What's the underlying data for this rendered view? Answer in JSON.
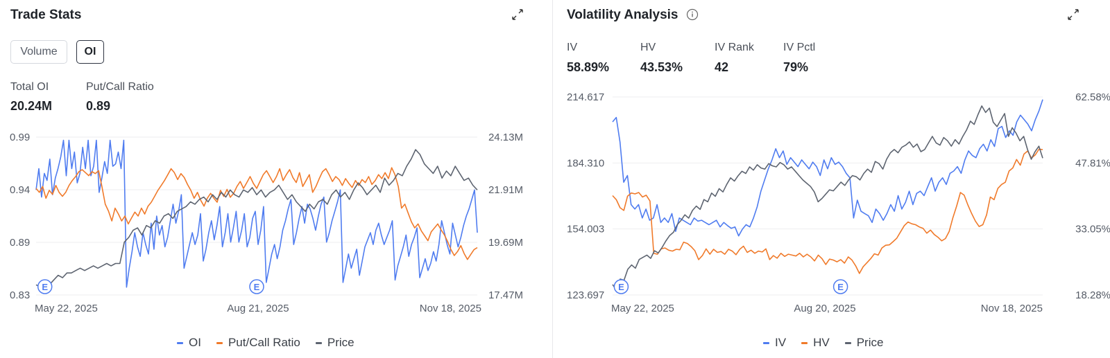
{
  "trade_stats": {
    "title": "Trade Stats",
    "toggles": [
      {
        "label": "Volume",
        "active": false
      },
      {
        "label": "OI",
        "active": true
      }
    ],
    "stats": [
      {
        "label": "Total OI",
        "value": "20.24M"
      },
      {
        "label": "Put/Call Ratio",
        "value": "0.89"
      }
    ],
    "legend": [
      "OI",
      "Put/Call Ratio",
      "Price"
    ]
  },
  "volatility": {
    "title": "Volatility Analysis",
    "stats": [
      {
        "label": "IV",
        "value": "58.89%"
      },
      {
        "label": "HV",
        "value": "43.53%"
      },
      {
        "label": "IV Rank",
        "value": "42"
      },
      {
        "label": "IV Pctl",
        "value": "79%"
      }
    ],
    "legend": [
      "IV",
      "HV",
      "Price"
    ]
  },
  "colors": {
    "blue": "#4f7cf0",
    "orange": "#f07a2a",
    "gray": "#5d6470",
    "grid": "#eeeeef"
  },
  "icons": {
    "expand": "expand-arrows-icon",
    "info": "info-circle-icon",
    "earnings": "earnings-marker-icon"
  },
  "chart_data": [
    {
      "type": "line",
      "title": "",
      "x_labels": [
        "May 22, 2025",
        "Aug 21, 2025",
        "Nov 18, 2025"
      ],
      "y_left_ticks": [
        "0.99",
        "0.94",
        "0.89",
        "0.83"
      ],
      "y_right_ticks": [
        "24.13M",
        "21.91M",
        "19.69M",
        "17.47M"
      ],
      "y_left_range": [
        0.83,
        0.99
      ],
      "y_right_range": [
        17.47,
        24.13
      ],
      "earnings_markers": [
        {
          "x": 0.02,
          "label": "E"
        },
        {
          "x": 0.5,
          "label": "E"
        }
      ],
      "series": [
        {
          "name": "OI",
          "color": "#4f7cf0",
          "axis": "right",
          "values": [
            21.9,
            22.8,
            21.6,
            22.6,
            22.3,
            23.2,
            21.7,
            22.4,
            22.8,
            23.3,
            24.0,
            22.5,
            24.0,
            22.8,
            23.5,
            22.2,
            22.6,
            23.7,
            22.8,
            24.0,
            22.5,
            22.9,
            24.0,
            21.8,
            22.4,
            23.1,
            22.6,
            24.0,
            22.9,
            23.0,
            23.5,
            22.8,
            24.0,
            17.8,
            18.6,
            19.3,
            20.1,
            19.5,
            19.1,
            20.1,
            19.6,
            19.2,
            20.5,
            19.4,
            20.8,
            20.0,
            20.4,
            19.5,
            19.9,
            20.6,
            21.3,
            20.5,
            21.0,
            21.7,
            18.6,
            19.1,
            19.6,
            20.1,
            19.6,
            20.0,
            20.9,
            18.9,
            19.4,
            20.1,
            20.6,
            19.8,
            20.4,
            21.2,
            19.5,
            20.1,
            20.9,
            19.7,
            20.3,
            21.0,
            19.7,
            20.2,
            20.9,
            19.5,
            19.9,
            20.7,
            21.0,
            19.6,
            20.2,
            21.2,
            18.0,
            18.6,
            19.2,
            19.6,
            19.0,
            19.5,
            20.2,
            20.6,
            21.1,
            21.5,
            19.6,
            20.1,
            20.7,
            21.2,
            20.5,
            21.3,
            21.1,
            20.7,
            20.2,
            20.8,
            21.3,
            21.6,
            19.7,
            20.1,
            20.6,
            21.0,
            21.4,
            21.9,
            18.0,
            18.6,
            19.2,
            18.6,
            19.0,
            19.4,
            18.3,
            18.9,
            19.5,
            19.8,
            20.1,
            19.6,
            20.2,
            20.5,
            20.0,
            19.6,
            19.9,
            20.2,
            20.6,
            18.1,
            18.7,
            19.1,
            19.5,
            20.0,
            19.1,
            19.6,
            19.9,
            20.3,
            18.2,
            18.6,
            19.0,
            18.5,
            18.8,
            19.3,
            18.9,
            19.6,
            20.6,
            20.1,
            19.6,
            19.2,
            20.5,
            20.0,
            19.5,
            19.9,
            20.4,
            20.8,
            21.1,
            21.5,
            21.9,
            20.1
          ]
        },
        {
          "name": "Put/Call Ratio",
          "color": "#f07a2a",
          "axis": "left",
          "values": [
            0.938,
            0.934,
            0.94,
            0.928,
            0.936,
            0.932,
            0.941,
            0.934,
            0.93,
            0.934,
            0.941,
            0.946,
            0.95,
            0.955,
            0.957,
            0.954,
            0.951,
            0.955,
            0.953,
            0.956,
            0.94,
            0.922,
            0.915,
            0.905,
            0.918,
            0.912,
            0.905,
            0.91,
            0.902,
            0.908,
            0.914,
            0.91,
            0.918,
            0.912,
            0.92,
            0.924,
            0.93,
            0.936,
            0.941,
            0.946,
            0.952,
            0.958,
            0.954,
            0.947,
            0.953,
            0.949,
            0.942,
            0.936,
            0.928,
            0.934,
            0.926,
            0.92,
            0.928,
            0.933,
            0.928,
            0.924,
            0.936,
            0.93,
            0.937,
            0.929,
            0.933,
            0.94,
            0.945,
            0.938,
            0.944,
            0.95,
            0.943,
            0.938,
            0.945,
            0.952,
            0.956,
            0.95,
            0.944,
            0.95,
            0.958,
            0.946,
            0.952,
            0.957,
            0.949,
            0.944,
            0.954,
            0.94,
            0.946,
            0.952,
            0.934,
            0.94,
            0.948,
            0.955,
            0.958,
            0.952,
            0.945,
            0.95,
            0.947,
            0.941,
            0.948,
            0.943,
            0.939,
            0.946,
            0.941,
            0.947,
            0.944,
            0.95,
            0.942,
            0.946,
            0.952,
            0.948,
            0.954,
            0.948,
            0.959,
            0.952,
            0.94,
            0.918,
            0.922,
            0.913,
            0.904,
            0.898,
            0.902,
            0.895,
            0.89,
            0.885,
            0.894,
            0.898,
            0.902,
            0.896,
            0.891,
            0.884,
            0.876,
            0.87,
            0.874,
            0.88,
            0.872,
            0.866,
            0.871,
            0.876,
            0.878
          ]
        },
        {
          "name": "Price",
          "color": "#5d6470",
          "axis": "right",
          "values": [
            17.9,
            17.8,
            18.0,
            17.9,
            18.1,
            18.3,
            18.2,
            18.4,
            18.4,
            18.5,
            18.6,
            18.5,
            18.6,
            18.7,
            18.6,
            18.7,
            18.8,
            18.7,
            18.8,
            18.8,
            19.7,
            19.9,
            20.2,
            20.3,
            20.0,
            20.4,
            20.3,
            20.6,
            20.5,
            20.8,
            20.9,
            20.7,
            21.0,
            21.1,
            21.2,
            21.4,
            21.3,
            21.5,
            21.6,
            21.4,
            21.7,
            21.5,
            21.8,
            21.6,
            21.9,
            21.7,
            21.6,
            21.9,
            21.8,
            22.0,
            21.7,
            21.9,
            21.6,
            21.8,
            21.9,
            22.1,
            21.8,
            21.5,
            21.7,
            21.4,
            21.2,
            21.0,
            21.3,
            21.1,
            21.4,
            21.5,
            21.3,
            21.7,
            21.9,
            21.6,
            21.8,
            21.5,
            21.9,
            22.2,
            22.0,
            21.7,
            21.9,
            22.1,
            21.8,
            22.4,
            22.1,
            22.3,
            22.6,
            22.5,
            22.9,
            23.2,
            23.6,
            23.4,
            23.0,
            22.8,
            22.6,
            22.9,
            22.4,
            22.7,
            22.5,
            22.9,
            22.6,
            22.3,
            22.4,
            22.1,
            21.9
          ]
        }
      ]
    },
    {
      "type": "line",
      "title": "",
      "x_labels": [
        "May 22, 2025",
        "Aug 20, 2025",
        "Nov 18, 2025"
      ],
      "y_left_ticks": [
        "214.617",
        "184.310",
        "154.003",
        "123.697"
      ],
      "y_right_ticks": [
        "62.58%",
        "47.81%",
        "33.05%",
        "18.28%"
      ],
      "y_left_range": [
        123.697,
        214.617
      ],
      "y_right_range": [
        18.28,
        62.58
      ],
      "earnings_markers": [
        {
          "x": 0.02,
          "label": "E"
        },
        {
          "x": 0.53,
          "label": "E"
        }
      ],
      "series": [
        {
          "name": "IV",
          "color": "#4f7cf0",
          "axis": "right",
          "values": [
            57.0,
            58.0,
            52.5,
            43.5,
            45.0,
            38.5,
            37.5,
            38.5,
            35.5,
            37.5,
            35.0,
            35.5,
            38.5,
            34.5,
            35.5,
            34.5,
            36.5,
            32.5,
            35.5,
            35.0,
            34.5,
            34.0,
            35.5,
            34.8,
            35.0,
            34.5,
            34.0,
            34.5,
            35.0,
            33.5,
            34.5,
            33.8,
            33.2,
            33.5,
            31.5,
            33.0,
            34.0,
            33.5,
            35.5,
            38.0,
            41.5,
            44.0,
            46.5,
            48.5,
            51.0,
            49.0,
            50.5,
            47.5,
            49.0,
            48.0,
            47.0,
            48.5,
            47.5,
            46.5,
            48.0,
            47.0,
            45.0,
            48.5,
            46.5,
            49.0,
            47.5,
            48.0,
            47.0,
            45.5,
            44.5,
            35.5,
            39.5,
            37.0,
            36.5,
            36.0,
            34.5,
            37.5,
            36.5,
            35.0,
            36.5,
            38.5,
            37.0,
            40.5,
            37.5,
            39.0,
            41.5,
            38.5,
            41.0,
            41.5,
            40.5,
            42.5,
            44.5,
            41.5,
            43.5,
            44.5,
            43.0,
            45.5,
            46.0,
            47.0,
            45.5,
            48.5,
            50.5,
            49.5,
            49.0,
            51.0,
            52.0,
            50.5,
            53.0,
            51.5,
            55.5,
            56.0,
            53.5,
            55.0,
            54.0,
            57.0,
            58.5,
            57.5,
            56.5,
            55.0,
            57.5,
            59.5,
            62.0
          ]
        },
        {
          "name": "HV",
          "color": "#f07a2a",
          "axis": "right",
          "values": [
            40.5,
            39.6,
            37.8,
            37.2,
            40.4,
            41.1,
            40.9,
            41.2,
            40.2,
            40.6,
            39.3,
            27.6,
            27.4,
            28.6,
            28.8,
            28.3,
            28.1,
            28.5,
            28.4,
            30.1,
            29.8,
            29.1,
            28.2,
            26.2,
            27.1,
            28.6,
            27.4,
            28.5,
            27.8,
            28.0,
            27.4,
            28.5,
            28.1,
            27.3,
            28.5,
            29.2,
            27.8,
            28.3,
            27.6,
            28.1,
            27.9,
            28.6,
            26.2,
            27.1,
            26.5,
            27.6,
            26.9,
            27.4,
            27.2,
            27.0,
            27.6,
            26.8,
            27.4,
            26.8,
            25.9,
            27.2,
            26.4,
            25.1,
            26.3,
            26.1,
            25.7,
            26.2,
            25.4,
            26.8,
            26.1,
            24.8,
            23.1,
            24.6,
            25.5,
            26.4,
            27.5,
            27.2,
            28.8,
            29.4,
            29.5,
            30.2,
            31.0,
            32.4,
            33.8,
            34.6,
            34.2,
            34.0,
            33.5,
            33.2,
            32.1,
            32.8,
            31.8,
            31.2,
            30.4,
            30.9,
            32.5,
            35.6,
            38.2,
            41.2,
            40.6,
            38.4,
            36.5,
            34.8,
            33.6,
            34.0,
            36.2,
            40.2,
            39.6,
            42.1,
            43.0,
            43.5,
            46.0,
            46.7,
            48.6,
            47.3,
            49.8,
            50.5,
            48.9,
            49.6,
            50.9,
            50.8
          ]
        },
        {
          "name": "Price",
          "color": "#5d6470",
          "axis": "left",
          "values": [
            128.5,
            126.0,
            131.0,
            130.5,
            135.5,
            137.5,
            136.0,
            140.0,
            141.0,
            142.0,
            140.5,
            144.0,
            143.0,
            145.5,
            148.5,
            151.0,
            152.5,
            156.0,
            158.0,
            160.5,
            159.0,
            162.5,
            164.5,
            163.0,
            167.5,
            166.5,
            170.5,
            169.0,
            172.5,
            171.0,
            174.5,
            177.5,
            176.0,
            178.5,
            180.5,
            179.5,
            182.5,
            181.0,
            183.5,
            182.0,
            181.5,
            184.0,
            183.0,
            182.5,
            184.5,
            183.5,
            181.5,
            182.5,
            180.5,
            178.5,
            176.5,
            175.0,
            173.5,
            171.0,
            166.5,
            168.0,
            170.0,
            172.0,
            171.5,
            173.5,
            175.5,
            174.0,
            176.5,
            178.5,
            178.0,
            176.5,
            179.5,
            181.5,
            180.0,
            185.0,
            184.0,
            181.5,
            186.0,
            189.0,
            190.5,
            189.0,
            191.5,
            192.5,
            194.0,
            191.5,
            193.0,
            189.5,
            190.5,
            193.5,
            196.5,
            193.5,
            192.5,
            196.0,
            194.5,
            192.0,
            195.0,
            193.0,
            196.5,
            199.5,
            203.5,
            202.0,
            206.5,
            210.5,
            207.5,
            209.5,
            203.0,
            201.0,
            204.0,
            207.0,
            196.5,
            200.5,
            198.0,
            194.5,
            196.5,
            190.5,
            186.0,
            189.5,
            192.0,
            186.5
          ]
        }
      ]
    }
  ]
}
